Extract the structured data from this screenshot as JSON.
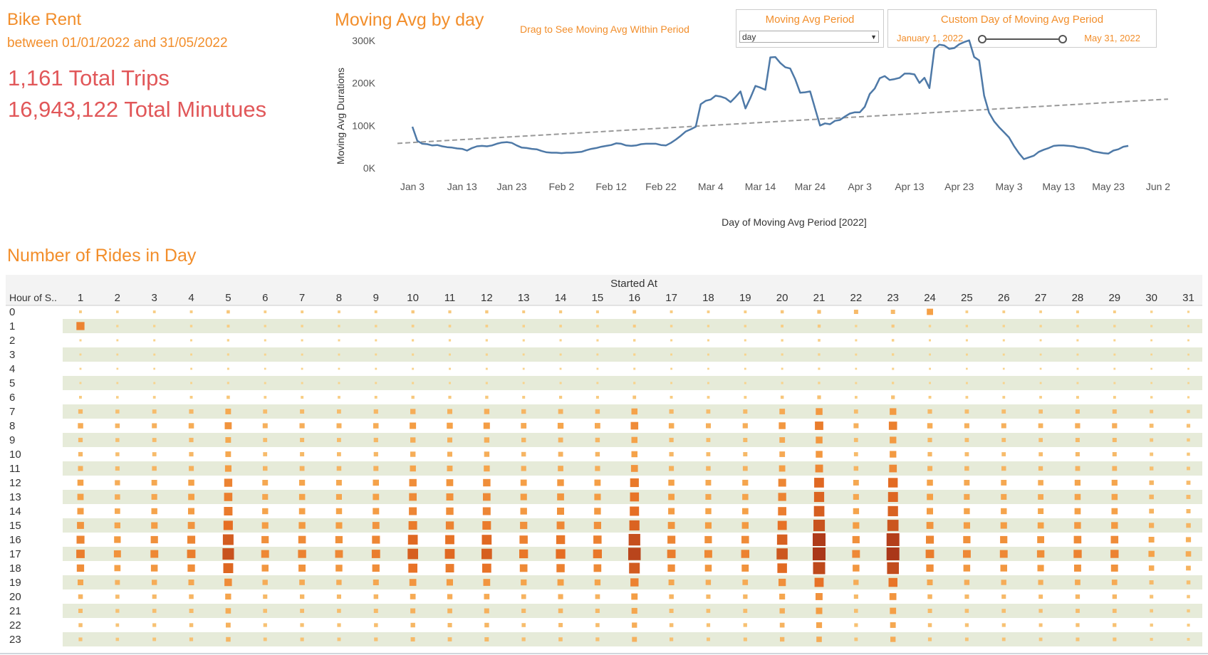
{
  "dashboard": {
    "title": "Bike Rent",
    "subtitle": "between 01/01/2022 and 31/05/2022",
    "total_trips": "1,161 Total Trips",
    "total_minutes": "16,943,122 Total Minutues"
  },
  "line_section": {
    "title": "Moving Avg by day",
    "drag_hint": "Drag to See Moving Avg Within Period"
  },
  "controls": {
    "period": {
      "title": "Moving Avg Period",
      "selected": "day"
    },
    "custom": {
      "title": "Custom Day of Moving Avg Period",
      "start": "January 1, 2022",
      "end": "May 31, 2022"
    }
  },
  "heatmap_section": {
    "title": "Number of Rides in Day"
  },
  "colors": {
    "accent": "#f28e2b",
    "kpi": "#e15759",
    "line": "#4e79a7",
    "trend": "#999999",
    "band": "#e6ebd9"
  },
  "chart_data": [
    {
      "type": "line",
      "title": "Moving Avg by day",
      "xlabel": "Day of Moving Avg Period [2022]",
      "ylabel": "Moving Avg Durations",
      "x_ticks": [
        "Jan 3",
        "Jan 13",
        "Jan 23",
        "Feb 2",
        "Feb 12",
        "Feb 22",
        "Mar 4",
        "Mar 14",
        "Mar 24",
        "Apr 3",
        "Apr 13",
        "Apr 23",
        "May 3",
        "May 13",
        "May 23",
        "Jun 2"
      ],
      "y_ticks": [
        "0K",
        "100K",
        "200K",
        "300K"
      ],
      "ylim": [
        0,
        320000
      ],
      "grid": false,
      "series": [
        {
          "values": [
            [
              2,
              97000
            ],
            [
              3,
              64000
            ],
            [
              4,
              57000
            ],
            [
              5,
              56000
            ],
            [
              6,
              53000
            ],
            [
              7,
              54000
            ],
            [
              8,
              51000
            ],
            [
              9,
              49000
            ],
            [
              10,
              48000
            ],
            [
              11,
              46000
            ],
            [
              12,
              45000
            ],
            [
              13,
              41000
            ],
            [
              14,
              47000
            ],
            [
              15,
              51000
            ],
            [
              16,
              52000
            ],
            [
              17,
              51000
            ],
            [
              18,
              53000
            ],
            [
              19,
              57000
            ],
            [
              20,
              60000
            ],
            [
              21,
              61000
            ],
            [
              22,
              59000
            ],
            [
              23,
              53000
            ],
            [
              24,
              48000
            ],
            [
              25,
              47000
            ],
            [
              26,
              45000
            ],
            [
              27,
              44000
            ],
            [
              28,
              40000
            ],
            [
              29,
              37000
            ],
            [
              30,
              36000
            ],
            [
              31,
              36000
            ],
            [
              32,
              35000
            ],
            [
              33,
              36000
            ],
            [
              34,
              36000
            ],
            [
              35,
              37000
            ],
            [
              36,
              38000
            ],
            [
              37,
              42000
            ],
            [
              38,
              45000
            ],
            [
              39,
              47000
            ],
            [
              40,
              50000
            ],
            [
              41,
              52000
            ],
            [
              42,
              54000
            ],
            [
              43,
              58000
            ],
            [
              44,
              57000
            ],
            [
              45,
              53000
            ],
            [
              46,
              52000
            ],
            [
              47,
              53000
            ],
            [
              48,
              56000
            ],
            [
              49,
              57000
            ],
            [
              50,
              57000
            ],
            [
              51,
              57000
            ],
            [
              52,
              54000
            ],
            [
              53,
              53000
            ],
            [
              54,
              59000
            ],
            [
              55,
              67000
            ],
            [
              56,
              76000
            ],
            [
              57,
              86000
            ],
            [
              58,
              91000
            ],
            [
              59,
              97000
            ],
            [
              60,
              150000
            ],
            [
              61,
              158000
            ],
            [
              62,
              161000
            ],
            [
              63,
              170000
            ],
            [
              64,
              168000
            ],
            [
              65,
              164000
            ],
            [
              66,
              155000
            ],
            [
              67,
              167000
            ],
            [
              68,
              180000
            ],
            [
              69,
              140000
            ],
            [
              70,
              165000
            ],
            [
              71,
              193000
            ],
            [
              72,
              189000
            ],
            [
              73,
              184000
            ],
            [
              74,
              260000
            ],
            [
              75,
              261000
            ],
            [
              76,
              247000
            ],
            [
              77,
              237000
            ],
            [
              78,
              234000
            ],
            [
              79,
              209000
            ],
            [
              80,
              177000
            ],
            [
              81,
              178000
            ],
            [
              82,
              180000
            ],
            [
              83,
              140000
            ],
            [
              84,
              100000
            ],
            [
              85,
              105000
            ],
            [
              86,
              103000
            ],
            [
              87,
              111000
            ],
            [
              88,
              113000
            ],
            [
              89,
              121000
            ],
            [
              90,
              128000
            ],
            [
              91,
              131000
            ],
            [
              92,
              131000
            ],
            [
              93,
              144000
            ],
            [
              94,
              174000
            ],
            [
              95,
              187000
            ],
            [
              96,
              211000
            ],
            [
              97,
              216000
            ],
            [
              98,
              207000
            ],
            [
              99,
              209000
            ],
            [
              100,
              212000
            ],
            [
              101,
              222000
            ],
            [
              102,
              222000
            ],
            [
              103,
              220000
            ],
            [
              104,
              200000
            ],
            [
              105,
              212000
            ],
            [
              106,
              188000
            ],
            [
              107,
              280000
            ],
            [
              108,
              290000
            ],
            [
              109,
              288000
            ],
            [
              110,
              280000
            ],
            [
              111,
              282000
            ],
            [
              112,
              291000
            ],
            [
              113,
              296000
            ],
            [
              114,
              300000
            ],
            [
              115,
              261000
            ],
            [
              116,
              253000
            ],
            [
              117,
              170000
            ],
            [
              118,
              130000
            ],
            [
              119,
              110000
            ],
            [
              120,
              96000
            ],
            [
              121,
              84000
            ],
            [
              122,
              72000
            ],
            [
              123,
              52000
            ],
            [
              124,
              35000
            ],
            [
              125,
              21000
            ],
            [
              126,
              25000
            ],
            [
              127,
              29000
            ],
            [
              128,
              38000
            ],
            [
              129,
              43000
            ],
            [
              130,
              47000
            ],
            [
              131,
              52000
            ],
            [
              132,
              53000
            ],
            [
              133,
              53000
            ],
            [
              134,
              52000
            ],
            [
              135,
              51000
            ],
            [
              136,
              48000
            ],
            [
              137,
              47000
            ],
            [
              138,
              44000
            ],
            [
              139,
              39000
            ],
            [
              140,
              37000
            ],
            [
              141,
              35000
            ],
            [
              142,
              34000
            ],
            [
              143,
              41000
            ],
            [
              144,
              44000
            ],
            [
              145,
              50000
            ],
            [
              146,
              52000
            ]
          ]
        }
      ],
      "trend": {
        "start": [
          -1,
          58000
        ],
        "end": [
          154,
          162000
        ]
      }
    },
    {
      "type": "heatmap",
      "title": "Number of Rides in Day",
      "xlabel": "Started At",
      "ylabel": "Hour of S..",
      "x": [
        "1",
        "2",
        "3",
        "4",
        "5",
        "6",
        "7",
        "8",
        "9",
        "10",
        "11",
        "12",
        "13",
        "14",
        "15",
        "16",
        "17",
        "18",
        "19",
        "20",
        "21",
        "22",
        "23",
        "24",
        "25",
        "26",
        "27",
        "28",
        "29",
        "30",
        "31"
      ],
      "y": [
        "0",
        "1",
        "2",
        "3",
        "4",
        "5",
        "6",
        "7",
        "8",
        "9",
        "10",
        "11",
        "12",
        "13",
        "14",
        "15",
        "16",
        "17",
        "18",
        "19",
        "20",
        "21",
        "22",
        "23"
      ],
      "hour_profile": [
        0.6,
        0.4,
        0.25,
        0.2,
        0.15,
        0.2,
        0.6,
        1.5,
        2.0,
        1.5,
        1.5,
        1.8,
        2.4,
        2.5,
        2.6,
        2.9,
        3.4,
        3.7,
        3.1,
        2.2,
        1.6,
        1.4,
        1.2,
        1.1
      ],
      "day_factor": [
        1.0,
        0.8,
        0.9,
        1.0,
        1.45,
        0.9,
        0.95,
        0.9,
        1.0,
        1.3,
        1.2,
        1.3,
        1.05,
        1.15,
        1.05,
        1.6,
        1.0,
        0.9,
        0.95,
        1.4,
        1.85,
        0.9,
        1.8,
        1.0,
        0.9,
        0.9,
        0.85,
        0.95,
        0.95,
        0.65,
        0.55
      ],
      "overrides": [
        [
          1,
          1,
          3.5
        ],
        [
          0,
          24,
          2.5
        ],
        [
          0,
          23,
          1.4
        ],
        [
          0,
          22,
          1.4
        ]
      ]
    }
  ]
}
